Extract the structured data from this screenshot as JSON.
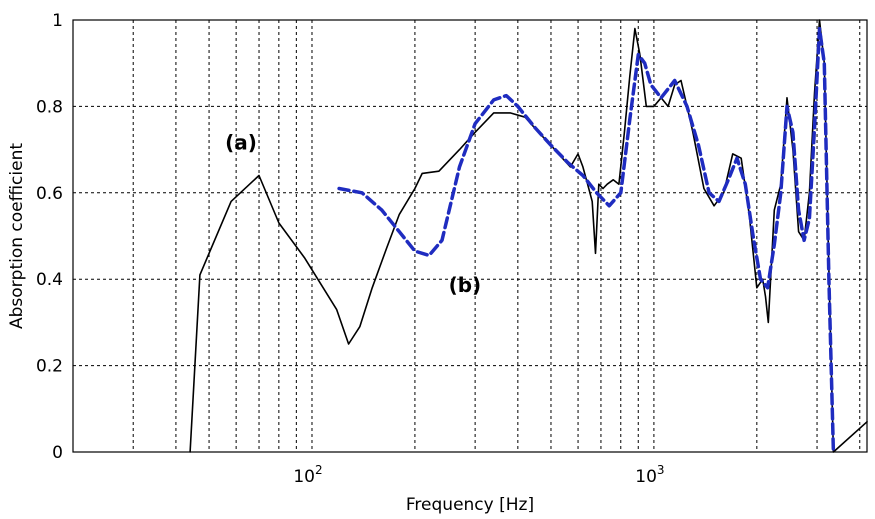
{
  "chart_data": {
    "type": "line",
    "title": "",
    "xlabel": "Frequency [Hz]",
    "ylabel": "Absorption coefficient",
    "xscale": "log",
    "xlim": [
      20,
      4200
    ],
    "ylim": [
      0,
      1
    ],
    "grid": true,
    "y_ticks": [
      "0",
      "0.2",
      "0.4",
      "0.6",
      "0.8",
      "1"
    ],
    "x_ticks": [
      {
        "value": 100,
        "base": "10",
        "exp": "2"
      },
      {
        "value": 1000,
        "base": "10",
        "exp": "3"
      }
    ],
    "series": [
      {
        "name": "(a)",
        "color": "#000000",
        "style": "solid",
        "x": [
          44,
          47,
          58,
          70,
          80,
          95,
          118,
          128,
          138,
          150,
          165,
          180,
          200,
          210,
          235,
          270,
          300,
          340,
          380,
          420,
          460,
          500,
          540,
          570,
          600,
          620,
          640,
          660,
          675,
          690,
          710,
          730,
          760,
          790,
          820,
          850,
          880,
          910,
          950,
          1000,
          1050,
          1100,
          1150,
          1200,
          1250,
          1300,
          1400,
          1500,
          1600,
          1700,
          1800,
          1900,
          2000,
          2080,
          2120,
          2160,
          2250,
          2350,
          2450,
          2550,
          2650,
          2750,
          2850,
          2950,
          3050,
          3150,
          3250,
          3350,
          4200
        ],
        "y": [
          0.0,
          0.41,
          0.58,
          0.64,
          0.53,
          0.45,
          0.33,
          0.25,
          0.29,
          0.38,
          0.47,
          0.55,
          0.61,
          0.645,
          0.65,
          0.7,
          0.74,
          0.785,
          0.785,
          0.775,
          0.74,
          0.71,
          0.68,
          0.66,
          0.69,
          0.66,
          0.62,
          0.58,
          0.46,
          0.62,
          0.61,
          0.62,
          0.63,
          0.62,
          0.74,
          0.87,
          0.98,
          0.92,
          0.8,
          0.8,
          0.82,
          0.8,
          0.85,
          0.86,
          0.8,
          0.74,
          0.61,
          0.57,
          0.6,
          0.69,
          0.68,
          0.55,
          0.38,
          0.4,
          0.36,
          0.3,
          0.56,
          0.62,
          0.82,
          0.7,
          0.51,
          0.49,
          0.6,
          0.83,
          1.0,
          0.9,
          0.42,
          0.0,
          0.07
        ]
      },
      {
        "name": "(b)",
        "color": "#1f2cc0",
        "style": "dashed",
        "x": [
          120,
          140,
          160,
          180,
          200,
          220,
          240,
          270,
          300,
          340,
          370,
          400,
          450,
          500,
          560,
          620,
          680,
          740,
          800,
          850,
          900,
          940,
          980,
          1050,
          1150,
          1250,
          1350,
          1450,
          1550,
          1650,
          1750,
          1850,
          1950,
          2050,
          2150,
          2250,
          2350,
          2450,
          2550,
          2650,
          2750,
          2850,
          2950,
          3050,
          3150,
          3250,
          3350
        ],
        "y": [
          0.61,
          0.6,
          0.56,
          0.51,
          0.465,
          0.455,
          0.49,
          0.66,
          0.76,
          0.815,
          0.825,
          0.8,
          0.75,
          0.71,
          0.67,
          0.64,
          0.6,
          0.57,
          0.6,
          0.77,
          0.92,
          0.9,
          0.85,
          0.82,
          0.86,
          0.8,
          0.71,
          0.6,
          0.58,
          0.63,
          0.68,
          0.62,
          0.5,
          0.4,
          0.38,
          0.48,
          0.6,
          0.8,
          0.74,
          0.56,
          0.49,
          0.54,
          0.75,
          0.98,
          0.9,
          0.4,
          0.0
        ]
      }
    ],
    "annotations": [
      {
        "text": "(a)",
        "x": 62,
        "y": 0.7
      },
      {
        "text": "(b)",
        "x": 280,
        "y": 0.37
      }
    ]
  }
}
